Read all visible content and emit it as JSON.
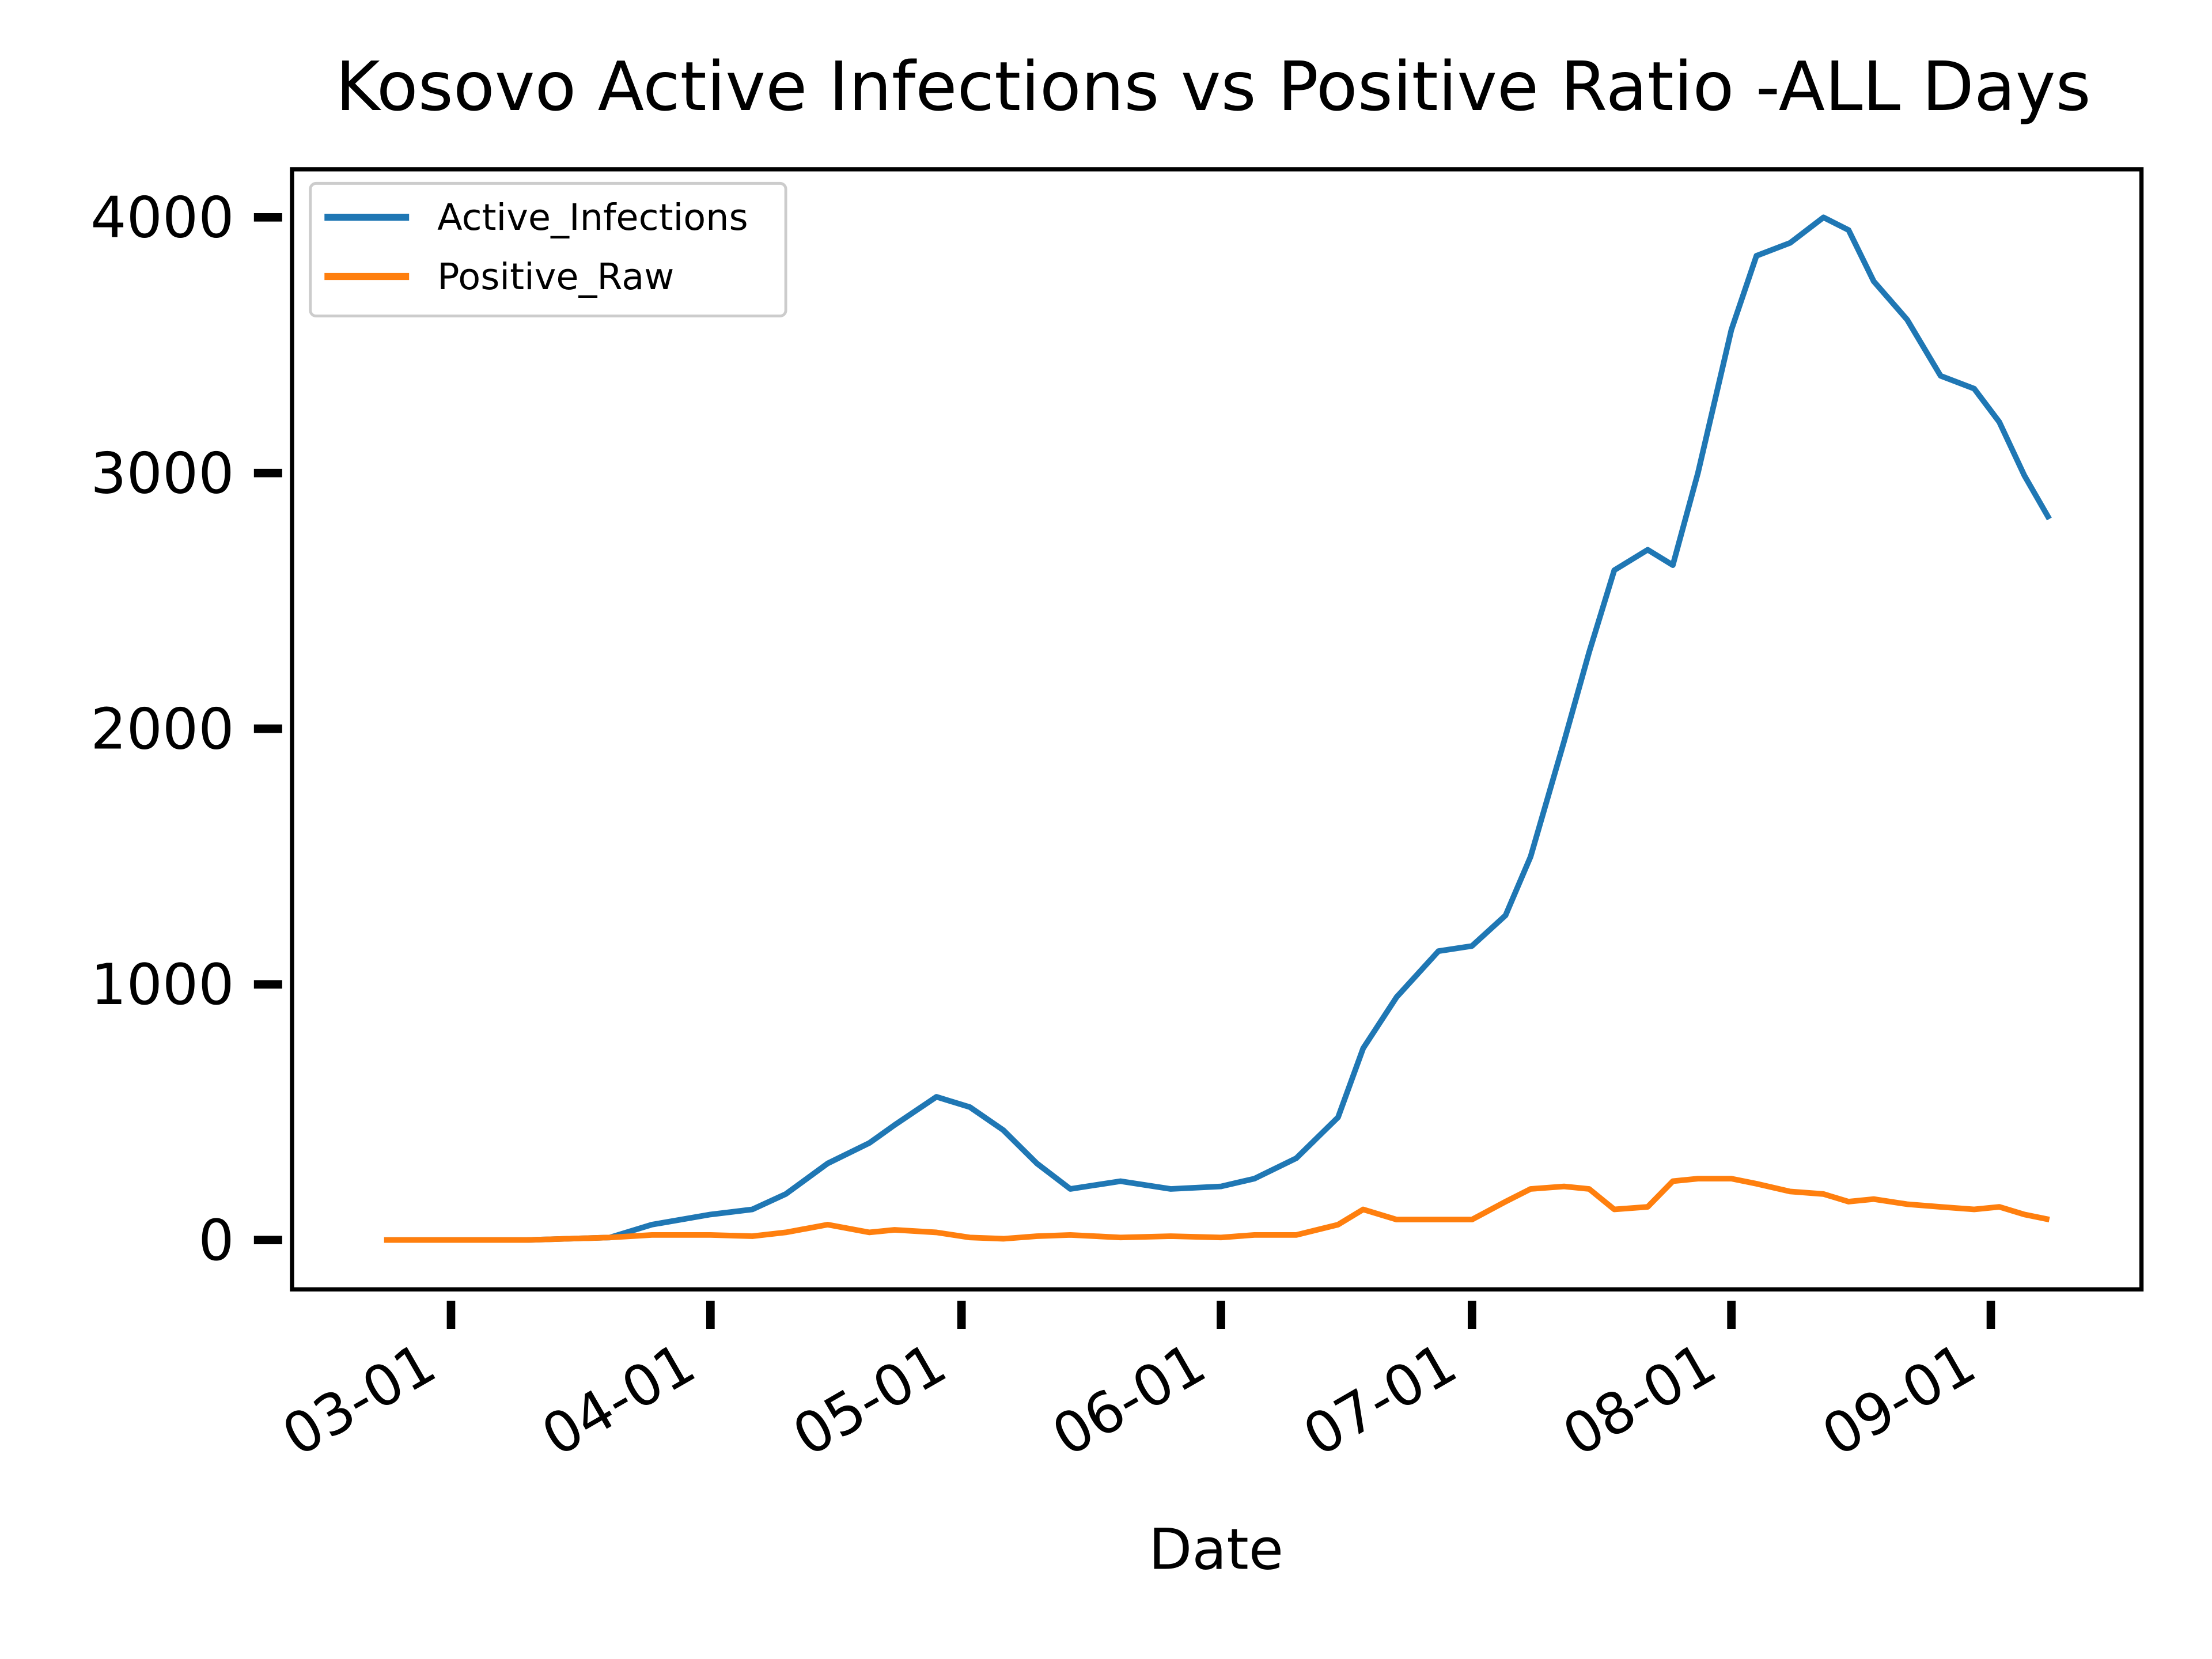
{
  "chart_data": {
    "type": "line",
    "title": "Kosovo Active Infections vs Positive Ratio -ALL Days",
    "x_label": "Date",
    "x": [
      "02-22",
      "03-01",
      "03-10",
      "03-20",
      "03-25",
      "04-01",
      "04-06",
      "04-10",
      "04-15",
      "04-20",
      "04-23",
      "04-28",
      "05-02",
      "05-06",
      "05-10",
      "05-14",
      "05-20",
      "05-26",
      "06-01",
      "06-05",
      "06-10",
      "06-15",
      "06-18",
      "06-22",
      "06-27",
      "07-01",
      "07-05",
      "07-08",
      "07-12",
      "07-15",
      "07-18",
      "07-22",
      "07-25",
      "07-28",
      "08-01",
      "08-04",
      "08-08",
      "08-12",
      "08-15",
      "08-18",
      "08-22",
      "08-26",
      "08-30",
      "09-02",
      "09-05",
      "09-08"
    ],
    "series": [
      {
        "name": "Active_Infections",
        "color": "#1f77b4",
        "values": [
          0,
          0,
          0,
          10,
          60,
          100,
          120,
          180,
          300,
          380,
          450,
          560,
          520,
          430,
          300,
          200,
          230,
          200,
          210,
          240,
          320,
          480,
          750,
          950,
          1130,
          1150,
          1270,
          1500,
          1950,
          2300,
          2620,
          2700,
          2640,
          3000,
          3560,
          3850,
          3900,
          4000,
          3950,
          3750,
          3600,
          3380,
          3330,
          3200,
          2990,
          2820
        ]
      },
      {
        "name": "Positive_Raw",
        "color": "#ff7f0e",
        "values": [
          0,
          0,
          0,
          10,
          20,
          20,
          15,
          30,
          60,
          30,
          40,
          30,
          10,
          5,
          15,
          20,
          10,
          15,
          10,
          20,
          20,
          60,
          120,
          80,
          80,
          80,
          150,
          200,
          210,
          200,
          120,
          130,
          230,
          240,
          240,
          220,
          190,
          180,
          150,
          160,
          140,
          130,
          120,
          130,
          100,
          80
        ]
      }
    ],
    "xlim": [
      "02-11",
      "09-19"
    ],
    "xticks": [
      "03-01",
      "04-01",
      "05-01",
      "06-01",
      "07-01",
      "08-01",
      "09-01"
    ],
    "ylim": [
      -193,
      4188
    ],
    "yticks": [
      0,
      1000,
      2000,
      3000,
      4000
    ],
    "legend": "upper left",
    "grid": false
  }
}
